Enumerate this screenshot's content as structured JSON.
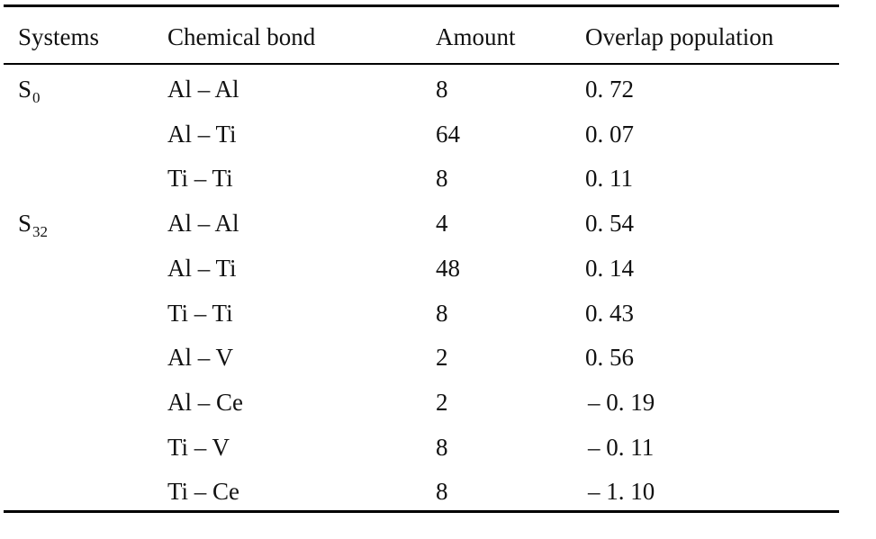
{
  "table": {
    "headers": [
      "Systems",
      "Chemical bond",
      "Amount",
      "Overlap population"
    ],
    "rows": [
      {
        "system_base": "S",
        "system_sub": "0",
        "bond": "Al – Al",
        "amount": "8",
        "overlap": "0. 72"
      },
      {
        "system_base": "",
        "system_sub": "",
        "bond": "Al – Ti",
        "amount": "64",
        "overlap": "0. 07"
      },
      {
        "system_base": "",
        "system_sub": "",
        "bond": "Ti – Ti",
        "amount": "8",
        "overlap": "0. 11"
      },
      {
        "system_base": "S",
        "system_sub": "32",
        "bond": "Al – Al",
        "amount": "4",
        "overlap": "0. 54"
      },
      {
        "system_base": "",
        "system_sub": "",
        "bond": "Al – Ti",
        "amount": "48",
        "overlap": "0. 14"
      },
      {
        "system_base": "",
        "system_sub": "",
        "bond": "Ti – Ti",
        "amount": "8",
        "overlap": "0. 43"
      },
      {
        "system_base": "",
        "system_sub": "",
        "bond": "Al – V",
        "amount": "2",
        "overlap": "0. 56"
      },
      {
        "system_base": "",
        "system_sub": "",
        "bond": "Al – Ce",
        "amount": "2",
        "overlap": "– 0. 19"
      },
      {
        "system_base": "",
        "system_sub": "",
        "bond": "Ti – V",
        "amount": "8",
        "overlap": "– 0. 11"
      },
      {
        "system_base": "",
        "system_sub": "",
        "bond": "Ti – Ce",
        "amount": "8",
        "overlap": "– 1. 10"
      }
    ]
  }
}
